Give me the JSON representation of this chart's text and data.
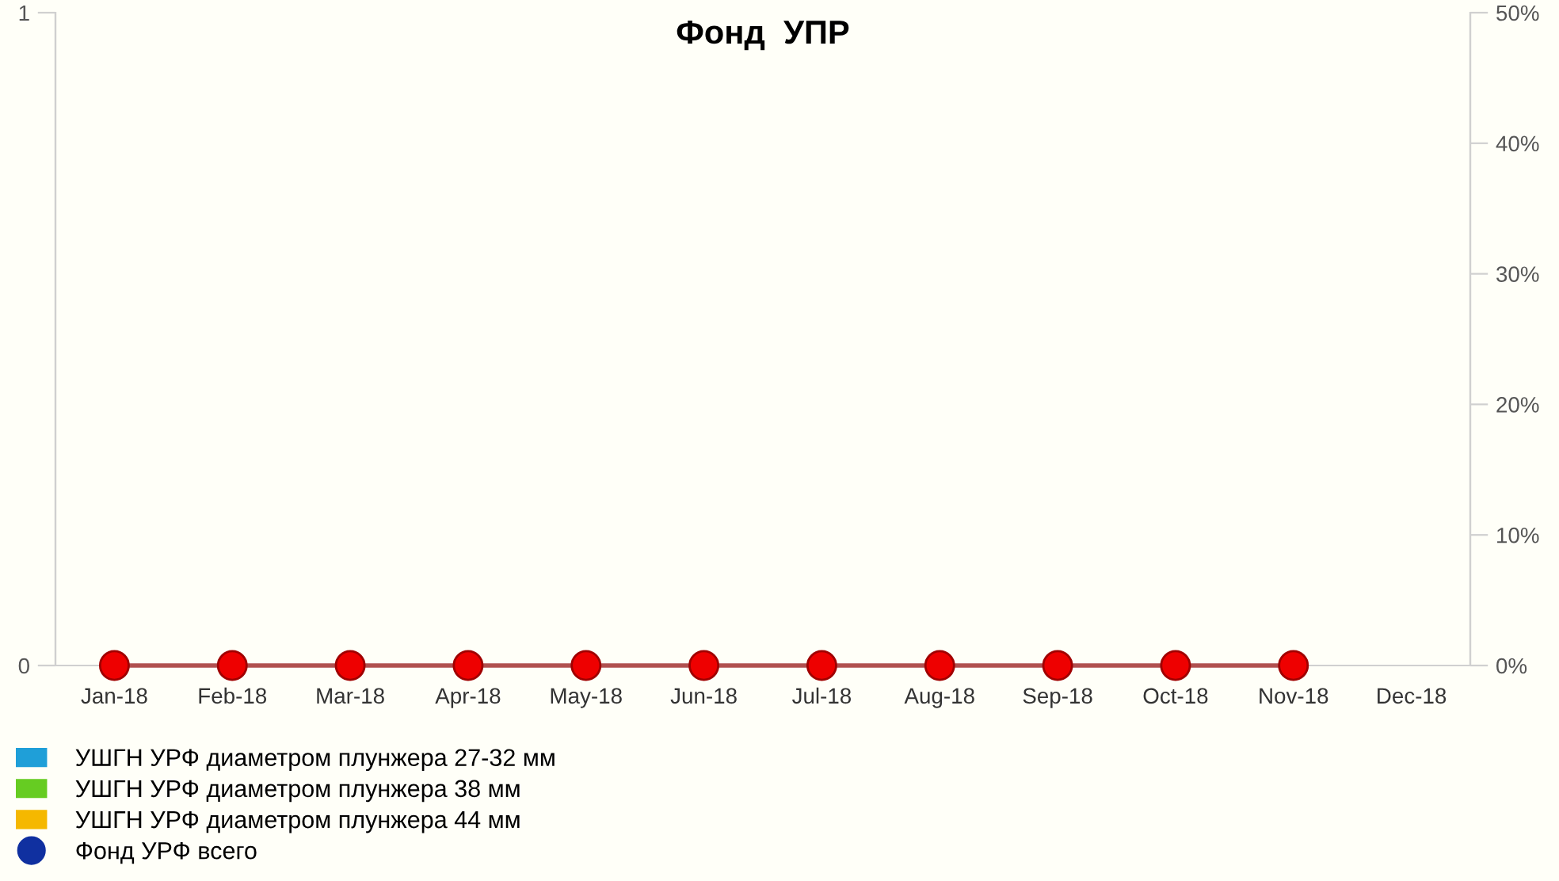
{
  "chart_data": {
    "type": "bar",
    "title": "Фонд  УПР",
    "categories": [
      "Jan-18",
      "Feb-18",
      "Mar-18",
      "Apr-18",
      "May-18",
      "Jun-18",
      "Jul-18",
      "Aug-18",
      "Sep-18",
      "Oct-18",
      "Nov-18",
      "Dec-18"
    ],
    "series": [
      {
        "name": "УШГН УРФ диаметром плунжера 27-32 мм",
        "color": "#1f9fd8",
        "values": [
          0,
          0,
          0,
          0,
          0,
          0,
          0,
          0,
          0,
          0,
          0,
          null
        ]
      },
      {
        "name": "УШГН УРФ диаметром плунжера 38 мм",
        "color": "#66cc22",
        "values": [
          0,
          0,
          0,
          0,
          0,
          0,
          0,
          0,
          0,
          0,
          0,
          null
        ]
      },
      {
        "name": "УШГН УРФ диаметром плунжера 44 мм",
        "color": "#f5b800",
        "values": [
          0,
          0,
          0,
          0,
          0,
          0,
          0,
          0,
          0,
          0,
          0,
          null
        ]
      },
      {
        "name": "Фонд УРФ всего",
        "type": "line",
        "color": "#1030a0",
        "marker": "circle",
        "values": [
          null,
          null,
          null,
          null,
          null,
          null,
          null,
          null,
          null,
          null,
          null,
          null
        ]
      },
      {
        "type": "line",
        "axis": "y2",
        "color": "#ee0000",
        "marker": "circle",
        "values": [
          0,
          0,
          0,
          0,
          0,
          0,
          0,
          0,
          0,
          0,
          0,
          null
        ]
      }
    ],
    "ylim": [
      0,
      1
    ],
    "yticks": [
      0,
      1
    ],
    "y2lim": [
      0,
      50
    ],
    "y2ticks": [
      {
        "value": 0,
        "label": "0%"
      },
      {
        "value": 10,
        "label": "10%"
      },
      {
        "value": 20,
        "label": "20%"
      },
      {
        "value": 30,
        "label": "30%"
      },
      {
        "value": 40,
        "label": "40%"
      },
      {
        "value": 50,
        "label": "50%"
      }
    ],
    "grid": false,
    "legend": "bottom left"
  }
}
